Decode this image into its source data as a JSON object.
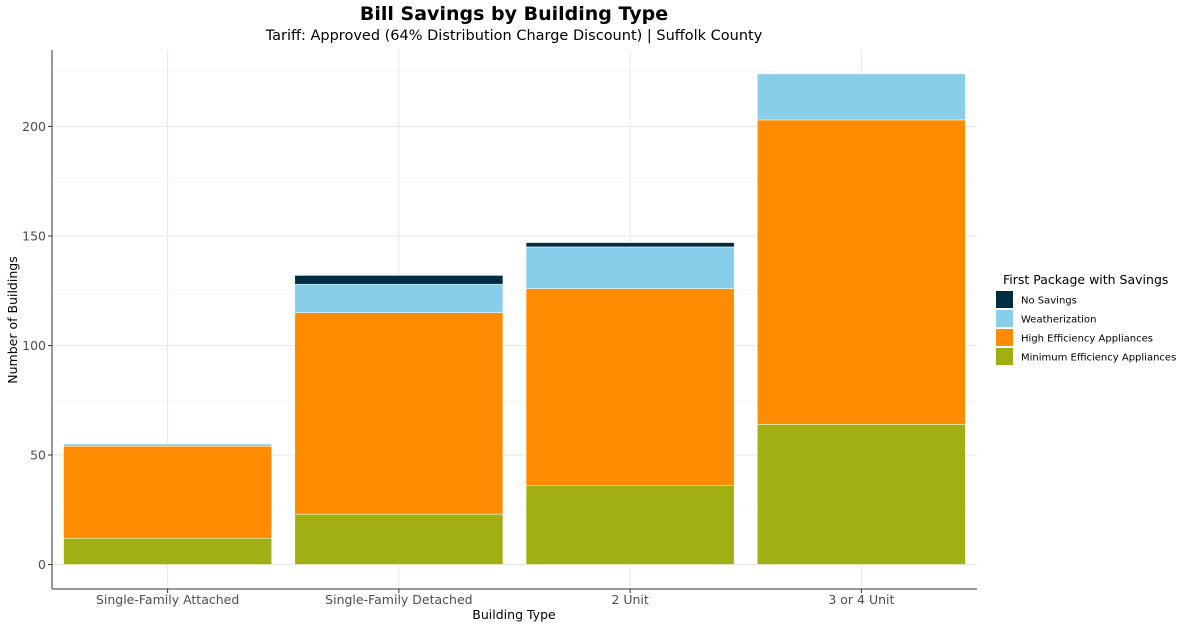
{
  "chart_data": {
    "type": "bar",
    "stacked": true,
    "title": "Bill Savings by Building Type",
    "subtitle": "Tariff: Approved (64% Distribution Charge Discount) | Suffolk County",
    "xlabel": "Building Type",
    "ylabel": "Number of Buildings",
    "categories": [
      "Single-Family Attached",
      "Single-Family Detached",
      "2 Unit",
      "3 or 4 Unit"
    ],
    "ylim": [
      0,
      235
    ],
    "yticks": [
      0,
      50,
      100,
      150,
      200
    ],
    "grid": true,
    "legend": {
      "title": "First Package with Savings",
      "placement": "right"
    },
    "series": [
      {
        "name": "Minimum Efficiency Appliances",
        "color": "#A2AF12",
        "values": [
          12,
          23,
          36,
          64
        ]
      },
      {
        "name": "High Efficiency Appliances",
        "color": "#FF8C00",
        "values": [
          42,
          92,
          90,
          139
        ]
      },
      {
        "name": "Weatherization",
        "color": "#87CEEB",
        "values": [
          1,
          13,
          19,
          21
        ]
      },
      {
        "name": "No Savings",
        "color": "#002D42",
        "values": [
          0,
          4,
          2,
          0
        ]
      }
    ],
    "legend_order": [
      "No Savings",
      "Weatherization",
      "High Efficiency Appliances",
      "Minimum Efficiency Appliances"
    ]
  }
}
